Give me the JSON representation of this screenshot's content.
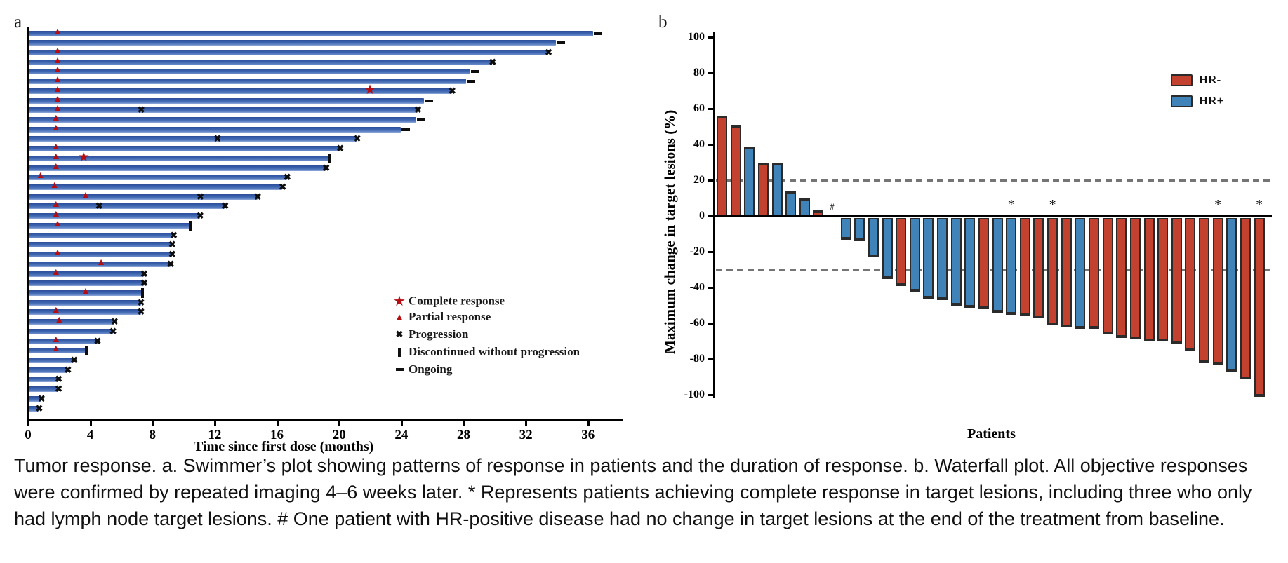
{
  "caption": "Tumor response. a. Swimmer’s plot showing patterns of response in patients and the duration of response. b. Waterfall plot. All objective responses were confirmed by repeated imaging 4–6 weeks later. * Represents patients achieving complete response in target lesions, including three who only had lymph node target lesions. # One patient with HR-positive disease had no change in target lesions at the end of the treatment from baseline.",
  "colors": {
    "swimmer_bar_blue": "#3b63ae",
    "response_marker_red": "#b50d12",
    "progression_black": "#0d0d0d",
    "hr_negative_red": "#c2412f",
    "hr_positive_blue": "#3f83b9",
    "reference_line_gray": "#757575"
  },
  "chart_data": [
    {
      "type": "swimmer",
      "panel_label": "a",
      "xlabel": "Time since first dose (months)",
      "xlim": [
        0,
        38
      ],
      "xticks": [
        0,
        4,
        8,
        12,
        16,
        20,
        24,
        28,
        32,
        36
      ],
      "legend": [
        {
          "symbol": "star",
          "label": "Complete response"
        },
        {
          "symbol": "triangle",
          "label": "Partial response"
        },
        {
          "symbol": "x",
          "label": "Progression"
        },
        {
          "symbol": "bar",
          "label": "Discontinued without progression"
        },
        {
          "symbol": "dash",
          "label": "Ongoing"
        }
      ],
      "patients": [
        {
          "duration": 36.3,
          "end": "ongoing",
          "markers": [
            {
              "type": "triangle",
              "month": 1.9
            }
          ]
        },
        {
          "duration": 33.9,
          "end": "ongoing",
          "markers": []
        },
        {
          "duration": 33.4,
          "end": "progression",
          "markers": [
            {
              "type": "triangle",
              "month": 1.9
            }
          ]
        },
        {
          "duration": 29.8,
          "end": "progression",
          "markers": [
            {
              "type": "triangle",
              "month": 1.9
            }
          ]
        },
        {
          "duration": 28.4,
          "end": "ongoing",
          "markers": [
            {
              "type": "triangle",
              "month": 1.9
            }
          ]
        },
        {
          "duration": 28.1,
          "end": "ongoing",
          "markers": [
            {
              "type": "triangle",
              "month": 1.9
            }
          ]
        },
        {
          "duration": 27.2,
          "end": "progression",
          "markers": [
            {
              "type": "triangle",
              "month": 1.9
            },
            {
              "type": "star",
              "month": 22.0
            }
          ]
        },
        {
          "duration": 25.4,
          "end": "ongoing",
          "markers": [
            {
              "type": "triangle",
              "month": 1.9
            }
          ]
        },
        {
          "duration": 25.0,
          "end": "progression",
          "markers": [
            {
              "type": "triangle",
              "month": 1.9
            },
            {
              "type": "x",
              "month": 7.3
            }
          ]
        },
        {
          "duration": 24.9,
          "end": "ongoing",
          "markers": [
            {
              "type": "triangle",
              "month": 1.8
            }
          ]
        },
        {
          "duration": 23.9,
          "end": "ongoing",
          "markers": [
            {
              "type": "triangle",
              "month": 1.8
            }
          ]
        },
        {
          "duration": 21.1,
          "end": "progression",
          "markers": [
            {
              "type": "x",
              "month": 12.2
            }
          ]
        },
        {
          "duration": 20.0,
          "end": "progression",
          "markers": [
            {
              "type": "triangle",
              "month": 1.8
            }
          ]
        },
        {
          "duration": 19.3,
          "end": "discontinued",
          "markers": [
            {
              "type": "triangle",
              "month": 1.8
            },
            {
              "type": "star",
              "month": 3.6
            }
          ]
        },
        {
          "duration": 19.1,
          "end": "progression",
          "markers": [
            {
              "type": "triangle",
              "month": 1.8
            }
          ]
        },
        {
          "duration": 16.6,
          "end": "progression",
          "markers": [
            {
              "type": "triangle",
              "month": 0.8
            }
          ]
        },
        {
          "duration": 16.3,
          "end": "progression",
          "markers": [
            {
              "type": "triangle",
              "month": 1.7
            }
          ]
        },
        {
          "duration": 14.7,
          "end": "progression",
          "markers": [
            {
              "type": "triangle",
              "month": 3.7
            },
            {
              "type": "x",
              "month": 11.1
            }
          ]
        },
        {
          "duration": 12.6,
          "end": "progression",
          "markers": [
            {
              "type": "triangle",
              "month": 1.8
            },
            {
              "type": "x",
              "month": 4.6
            }
          ]
        },
        {
          "duration": 11.0,
          "end": "progression",
          "markers": [
            {
              "type": "triangle",
              "month": 1.8
            }
          ]
        },
        {
          "duration": 10.4,
          "end": "discontinued",
          "markers": [
            {
              "type": "triangle",
              "month": 1.9
            }
          ]
        },
        {
          "duration": 9.3,
          "end": "progression",
          "markers": []
        },
        {
          "duration": 9.2,
          "end": "progression",
          "markers": []
        },
        {
          "duration": 9.2,
          "end": "progression",
          "markers": [
            {
              "type": "triangle",
              "month": 1.9
            }
          ]
        },
        {
          "duration": 9.1,
          "end": "progression",
          "markers": [
            {
              "type": "triangle",
              "month": 4.7
            }
          ]
        },
        {
          "duration": 7.4,
          "end": "progression",
          "markers": [
            {
              "type": "triangle",
              "month": 1.8
            }
          ]
        },
        {
          "duration": 7.4,
          "end": "progression",
          "markers": []
        },
        {
          "duration": 7.3,
          "end": "discontinued",
          "markers": [
            {
              "type": "triangle",
              "month": 3.7
            }
          ]
        },
        {
          "duration": 7.2,
          "end": "progression",
          "markers": []
        },
        {
          "duration": 7.2,
          "end": "progression",
          "markers": [
            {
              "type": "triangle",
              "month": 1.8
            }
          ]
        },
        {
          "duration": 5.5,
          "end": "progression",
          "markers": [
            {
              "type": "triangle",
              "month": 2.0
            }
          ]
        },
        {
          "duration": 5.4,
          "end": "progression",
          "markers": []
        },
        {
          "duration": 4.4,
          "end": "progression",
          "markers": [
            {
              "type": "triangle",
              "month": 1.8
            }
          ]
        },
        {
          "duration": 3.7,
          "end": "discontinued",
          "markers": [
            {
              "type": "triangle",
              "month": 1.8
            }
          ]
        },
        {
          "duration": 2.9,
          "end": "progression",
          "markers": []
        },
        {
          "duration": 2.5,
          "end": "progression",
          "markers": []
        },
        {
          "duration": 1.9,
          "end": "progression",
          "markers": []
        },
        {
          "duration": 1.9,
          "end": "progression",
          "markers": []
        },
        {
          "duration": 0.8,
          "end": "progression",
          "markers": []
        },
        {
          "duration": 0.65,
          "end": "progression",
          "markers": []
        }
      ]
    },
    {
      "type": "waterfall",
      "panel_label": "b",
      "ylabel": "Maximum change in target lesions (%)",
      "xlabel": "Patients",
      "ylim": [
        -100,
        100
      ],
      "yticks": [
        100,
        80,
        60,
        40,
        20,
        0,
        -20,
        -40,
        -60,
        -80,
        -100
      ],
      "reference_lines": [
        20,
        -30
      ],
      "legend": [
        {
          "label": "HR-",
          "color": "#c2412f"
        },
        {
          "label": "HR+",
          "color": "#3f83b9"
        }
      ],
      "annotations": {
        "star": "*",
        "hash": "#"
      },
      "bars": [
        {
          "value": 56,
          "group": "HR-"
        },
        {
          "value": 51,
          "group": "HR-"
        },
        {
          "value": 39,
          "group": "HR+"
        },
        {
          "value": 30,
          "group": "HR-"
        },
        {
          "value": 30,
          "group": "HR+"
        },
        {
          "value": 14,
          "group": "HR+"
        },
        {
          "value": 10,
          "group": "HR+"
        },
        {
          "value": 3,
          "group": "HR-"
        },
        {
          "value": 0,
          "group": "HR+",
          "hash": true
        },
        {
          "value": -12,
          "group": "HR+"
        },
        {
          "value": -13,
          "group": "HR+"
        },
        {
          "value": -22,
          "group": "HR+"
        },
        {
          "value": -34,
          "group": "HR+"
        },
        {
          "value": -38,
          "group": "HR-"
        },
        {
          "value": -41,
          "group": "HR+"
        },
        {
          "value": -45,
          "group": "HR+"
        },
        {
          "value": -46,
          "group": "HR+"
        },
        {
          "value": -49,
          "group": "HR+"
        },
        {
          "value": -50,
          "group": "HR+"
        },
        {
          "value": -51,
          "group": "HR-"
        },
        {
          "value": -53,
          "group": "HR+"
        },
        {
          "value": -54,
          "group": "HR+",
          "star": true
        },
        {
          "value": -55,
          "group": "HR-"
        },
        {
          "value": -56,
          "group": "HR-"
        },
        {
          "value": -60,
          "group": "HR-",
          "star": true
        },
        {
          "value": -61,
          "group": "HR-"
        },
        {
          "value": -62,
          "group": "HR+"
        },
        {
          "value": -62,
          "group": "HR-"
        },
        {
          "value": -65,
          "group": "HR-"
        },
        {
          "value": -67,
          "group": "HR-"
        },
        {
          "value": -68,
          "group": "HR-"
        },
        {
          "value": -69,
          "group": "HR-"
        },
        {
          "value": -69,
          "group": "HR-"
        },
        {
          "value": -70,
          "group": "HR-"
        },
        {
          "value": -74,
          "group": "HR-"
        },
        {
          "value": -81,
          "group": "HR-"
        },
        {
          "value": -82,
          "group": "HR-",
          "star": true
        },
        {
          "value": -86,
          "group": "HR+"
        },
        {
          "value": -90,
          "group": "HR-"
        },
        {
          "value": -100,
          "group": "HR-",
          "star": true
        }
      ]
    }
  ]
}
